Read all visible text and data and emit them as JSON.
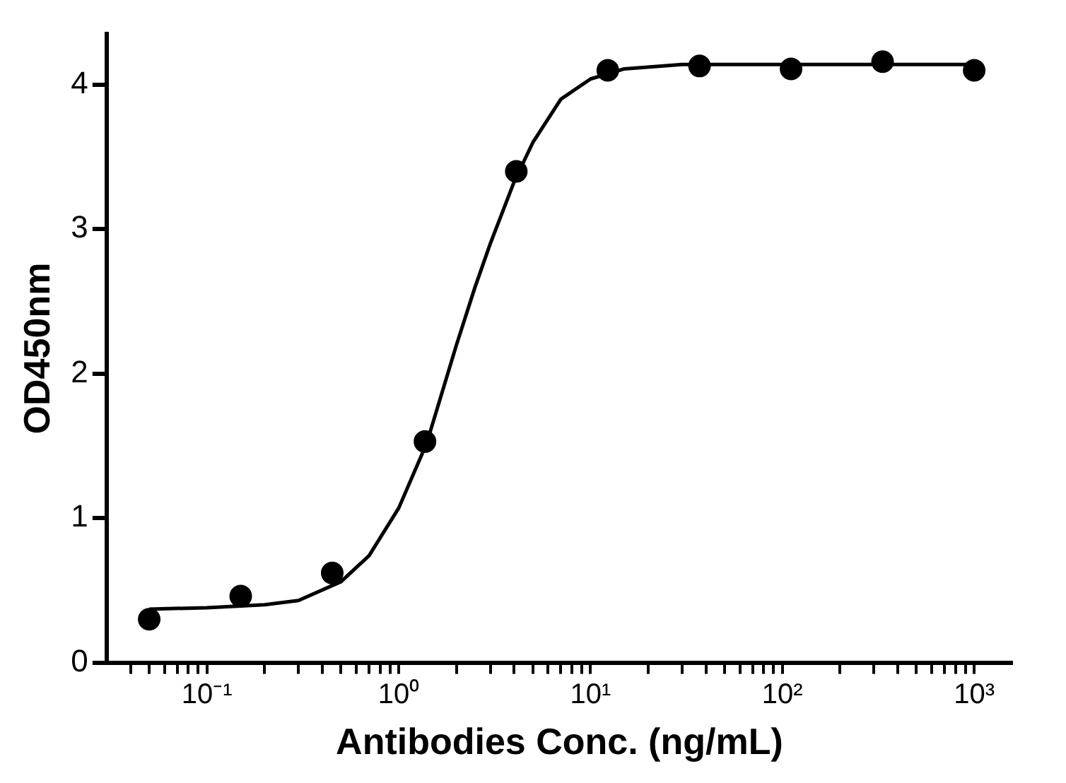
{
  "chart_data": {
    "type": "scatter",
    "xlabel": "Antibodies Conc. (ng/mL)",
    "ylabel": "OD450nm",
    "log": "x",
    "grid": false,
    "legend": false,
    "marker": "circle",
    "xlim": [
      0.03,
      1580
    ],
    "ylim": [
      0,
      4.35
    ],
    "xticks": [
      {
        "value": 0.04,
        "label": null
      },
      {
        "value": 0.05,
        "label": null
      },
      {
        "value": 0.06,
        "label": null
      },
      {
        "value": 0.07,
        "label": null
      },
      {
        "value": 0.08,
        "label": null
      },
      {
        "value": 0.09,
        "label": null
      },
      {
        "value": 0.1,
        "label": "10⁻¹"
      },
      {
        "value": 0.2,
        "label": null
      },
      {
        "value": 0.3,
        "label": null
      },
      {
        "value": 0.4,
        "label": null
      },
      {
        "value": 0.5,
        "label": null
      },
      {
        "value": 0.6,
        "label": null
      },
      {
        "value": 0.7,
        "label": null
      },
      {
        "value": 0.8,
        "label": null
      },
      {
        "value": 0.9,
        "label": null
      },
      {
        "value": 1,
        "label": "10⁰"
      },
      {
        "value": 2,
        "label": null
      },
      {
        "value": 3,
        "label": null
      },
      {
        "value": 4,
        "label": null
      },
      {
        "value": 5,
        "label": null
      },
      {
        "value": 6,
        "label": null
      },
      {
        "value": 7,
        "label": null
      },
      {
        "value": 8,
        "label": null
      },
      {
        "value": 9,
        "label": null
      },
      {
        "value": 10,
        "label": "10¹"
      },
      {
        "value": 20,
        "label": null
      },
      {
        "value": 30,
        "label": null
      },
      {
        "value": 40,
        "label": null
      },
      {
        "value": 50,
        "label": null
      },
      {
        "value": 60,
        "label": null
      },
      {
        "value": 70,
        "label": null
      },
      {
        "value": 80,
        "label": null
      },
      {
        "value": 90,
        "label": null
      },
      {
        "value": 100,
        "label": "10²"
      },
      {
        "value": 200,
        "label": null
      },
      {
        "value": 300,
        "label": null
      },
      {
        "value": 400,
        "label": null
      },
      {
        "value": 500,
        "label": null
      },
      {
        "value": 600,
        "label": null
      },
      {
        "value": 700,
        "label": null
      },
      {
        "value": 800,
        "label": null
      },
      {
        "value": 900,
        "label": null
      },
      {
        "value": 1000,
        "label": "10³"
      }
    ],
    "yticks": [
      0,
      1,
      2,
      3,
      4
    ],
    "series": [
      {
        "type": "scatter",
        "color": "#000000",
        "x": [
          0.05,
          0.15,
          0.45,
          1.37,
          4.1,
          12.3,
          37,
          111,
          333,
          1000
        ],
        "values": [
          0.3,
          0.46,
          0.62,
          1.53,
          3.4,
          4.1,
          4.13,
          4.11,
          4.16,
          4.1
        ]
      },
      {
        "type": "line",
        "color": "#000000",
        "marker": "none",
        "line_style": "solid",
        "x": [
          0.05,
          0.1,
          0.2,
          0.3,
          0.5,
          0.7,
          1,
          1.4,
          2,
          2.5,
          3,
          4,
          5,
          7,
          10,
          15,
          30,
          100,
          1000
        ],
        "values": [
          0.37,
          0.38,
          0.4,
          0.43,
          0.56,
          0.74,
          1.07,
          1.52,
          2.2,
          2.6,
          2.9,
          3.33,
          3.6,
          3.9,
          4.04,
          4.11,
          4.14,
          4.14,
          4.14
        ]
      }
    ]
  }
}
